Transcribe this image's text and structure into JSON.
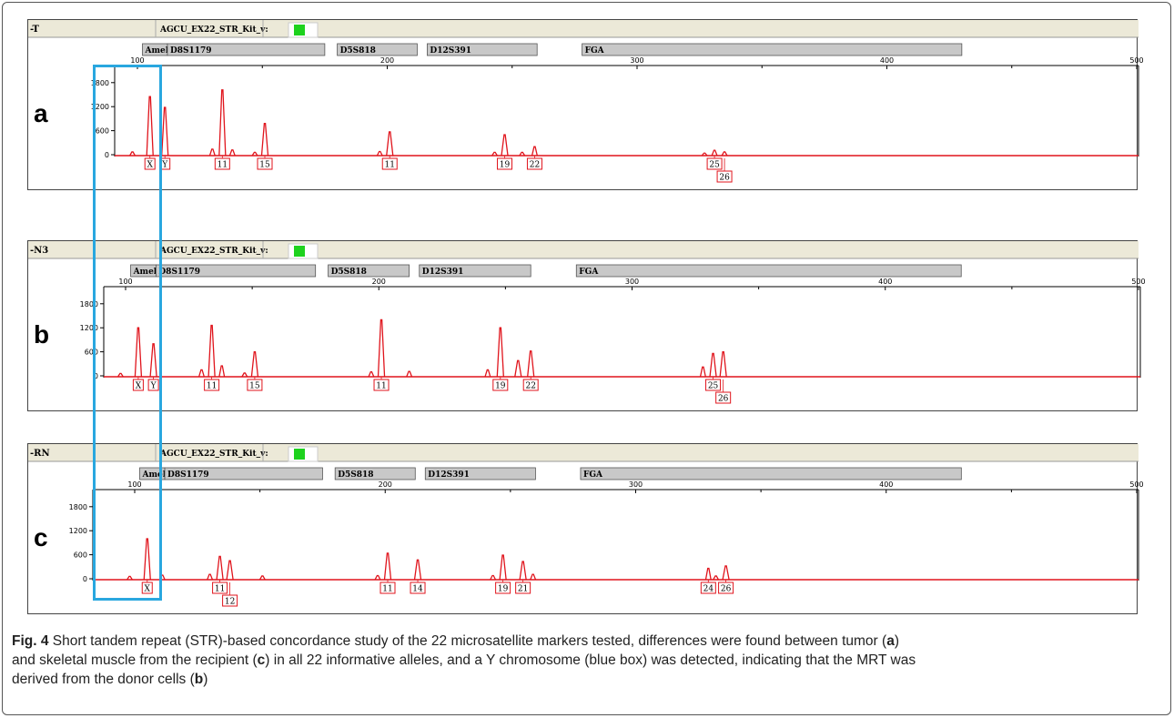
{
  "figure": {
    "caption": {
      "fig_label": "Fig. 4",
      "parts": [
        " Short tandem repeat (STR)-based concordance study of the 22 microsatellite markers tested, differences were found between tumor (",
        {
          "b": "a"
        },
        ")\nand skeletal muscle from the recipient (",
        {
          "b": "c"
        },
        ") in all 22 informative alleles, and a Y chromosome (blue box) was detected, indicating that the MRT was\nderived from the donor cells (",
        {
          "b": "b"
        },
        ")"
      ]
    },
    "colors": {
      "trace": "#e0141c",
      "highlight_box": "#29a7df",
      "dye_indicator": "#1ed21e",
      "marker_bar": "#c8c8c8",
      "header_bg": "#ece9d8"
    },
    "kit_name": "AGCU_EX22_STR_Kit_v:"
  },
  "chart_data": [
    {
      "type": "line",
      "panel_label": "a",
      "sample_tag": "-T",
      "xlim": [
        80,
        500
      ],
      "ylim": [
        0,
        2000
      ],
      "x_ticks": [
        "100",
        "200",
        "300",
        "400",
        "500"
      ],
      "y_ticks": [
        "0",
        "600",
        "1200",
        "1800"
      ],
      "markers": [
        {
          "name": "Amel",
          "range": [
            102,
            112
          ]
        },
        {
          "name": "D8S1179",
          "range": [
            112,
            175
          ]
        },
        {
          "name": "D5S818",
          "range": [
            180,
            212
          ]
        },
        {
          "name": "D12S391",
          "range": [
            216,
            260
          ]
        },
        {
          "name": "FGA",
          "range": [
            278,
            430
          ]
        }
      ],
      "peaks": [
        {
          "x": 105,
          "y": 1450,
          "label": "X",
          "row": 0
        },
        {
          "x": 111,
          "y": 1180,
          "label": "Y",
          "row": 0
        },
        {
          "x": 134,
          "y": 1620,
          "label": "11",
          "row": 0
        },
        {
          "x": 151,
          "y": 780,
          "label": "15",
          "row": 0
        },
        {
          "x": 201,
          "y": 570,
          "label": "11",
          "row": 0
        },
        {
          "x": 247,
          "y": 500,
          "label": "19",
          "row": 0
        },
        {
          "x": 259,
          "y": 200,
          "label": "22",
          "row": 0
        },
        {
          "x": 331,
          "y": 110,
          "label": "25",
          "row": 0
        },
        {
          "x": 335,
          "y": 70,
          "label": "26",
          "row": 1
        },
        {
          "x": 130,
          "y": 140
        },
        {
          "x": 138,
          "y": 120
        },
        {
          "x": 98,
          "y": 70
        },
        {
          "x": 197,
          "y": 80
        },
        {
          "x": 243,
          "y": 60
        },
        {
          "x": 254,
          "y": 60
        },
        {
          "x": 327,
          "y": 40
        },
        {
          "x": 147,
          "y": 60
        }
      ]
    },
    {
      "type": "line",
      "panel_label": "b",
      "sample_tag": "-N3",
      "xlim": [
        100,
        500
      ],
      "ylim": [
        0,
        2000
      ],
      "x_ticks": [
        "100",
        "200",
        "300",
        "400",
        "500"
      ],
      "y_ticks": [
        "0",
        "600",
        "1200",
        "1800"
      ],
      "markers": [
        {
          "name": "Amel",
          "range": [
            102,
            112
          ]
        },
        {
          "name": "D8S1179",
          "range": [
            112,
            175
          ]
        },
        {
          "name": "D5S818",
          "range": [
            180,
            212
          ]
        },
        {
          "name": "D12S391",
          "range": [
            216,
            260
          ]
        },
        {
          "name": "FGA",
          "range": [
            278,
            430
          ]
        }
      ],
      "peaks": [
        {
          "x": 105,
          "y": 1200,
          "label": "X",
          "row": 0
        },
        {
          "x": 111,
          "y": 800,
          "label": "Y",
          "row": 0
        },
        {
          "x": 134,
          "y": 1260,
          "label": "11",
          "row": 0
        },
        {
          "x": 151,
          "y": 600,
          "label": "15",
          "row": 0
        },
        {
          "x": 201,
          "y": 1400,
          "label": "11",
          "row": 0
        },
        {
          "x": 248,
          "y": 1200,
          "label": "19",
          "row": 0
        },
        {
          "x": 260,
          "y": 620,
          "label": "22",
          "row": 0
        },
        {
          "x": 332,
          "y": 560,
          "label": "25",
          "row": 0
        },
        {
          "x": 336,
          "y": 600,
          "label": "26",
          "row": 1
        },
        {
          "x": 130,
          "y": 150
        },
        {
          "x": 138,
          "y": 250
        },
        {
          "x": 98,
          "y": 60
        },
        {
          "x": 197,
          "y": 100
        },
        {
          "x": 243,
          "y": 150
        },
        {
          "x": 255,
          "y": 380
        },
        {
          "x": 328,
          "y": 220
        },
        {
          "x": 212,
          "y": 110
        },
        {
          "x": 147,
          "y": 70
        }
      ]
    },
    {
      "type": "line",
      "panel_label": "c",
      "sample_tag": "-RN",
      "xlim": [
        80,
        500
      ],
      "ylim": [
        0,
        2000
      ],
      "x_ticks": [
        "100",
        "200",
        "300",
        "400",
        "500"
      ],
      "y_ticks": [
        "0",
        "600",
        "1200",
        "1800"
      ],
      "markers": [
        {
          "name": "Amel",
          "range": [
            102,
            112
          ]
        },
        {
          "name": "D8S1179",
          "range": [
            112,
            175
          ]
        },
        {
          "name": "D5S818",
          "range": [
            180,
            212
          ]
        },
        {
          "name": "D12S391",
          "range": [
            216,
            260
          ]
        },
        {
          "name": "FGA",
          "range": [
            278,
            430
          ]
        }
      ],
      "peaks": [
        {
          "x": 105,
          "y": 1000,
          "label": "X",
          "row": 0
        },
        {
          "x": 111,
          "y": 90
        },
        {
          "x": 134,
          "y": 560,
          "label": "11",
          "row": 0
        },
        {
          "x": 138,
          "y": 450,
          "label": "12",
          "row": 1
        },
        {
          "x": 201,
          "y": 640,
          "label": "11",
          "row": 0
        },
        {
          "x": 213,
          "y": 470,
          "label": "14",
          "row": 0
        },
        {
          "x": 247,
          "y": 590,
          "label": "19",
          "row": 0
        },
        {
          "x": 255,
          "y": 430,
          "label": "21",
          "row": 0
        },
        {
          "x": 329,
          "y": 260,
          "label": "24",
          "row": 0
        },
        {
          "x": 336,
          "y": 320,
          "label": "26",
          "row": 0
        },
        {
          "x": 130,
          "y": 110
        },
        {
          "x": 98,
          "y": 60
        },
        {
          "x": 197,
          "y": 80
        },
        {
          "x": 151,
          "y": 70
        },
        {
          "x": 243,
          "y": 80
        },
        {
          "x": 259,
          "y": 110
        },
        {
          "x": 332,
          "y": 70
        }
      ]
    }
  ]
}
